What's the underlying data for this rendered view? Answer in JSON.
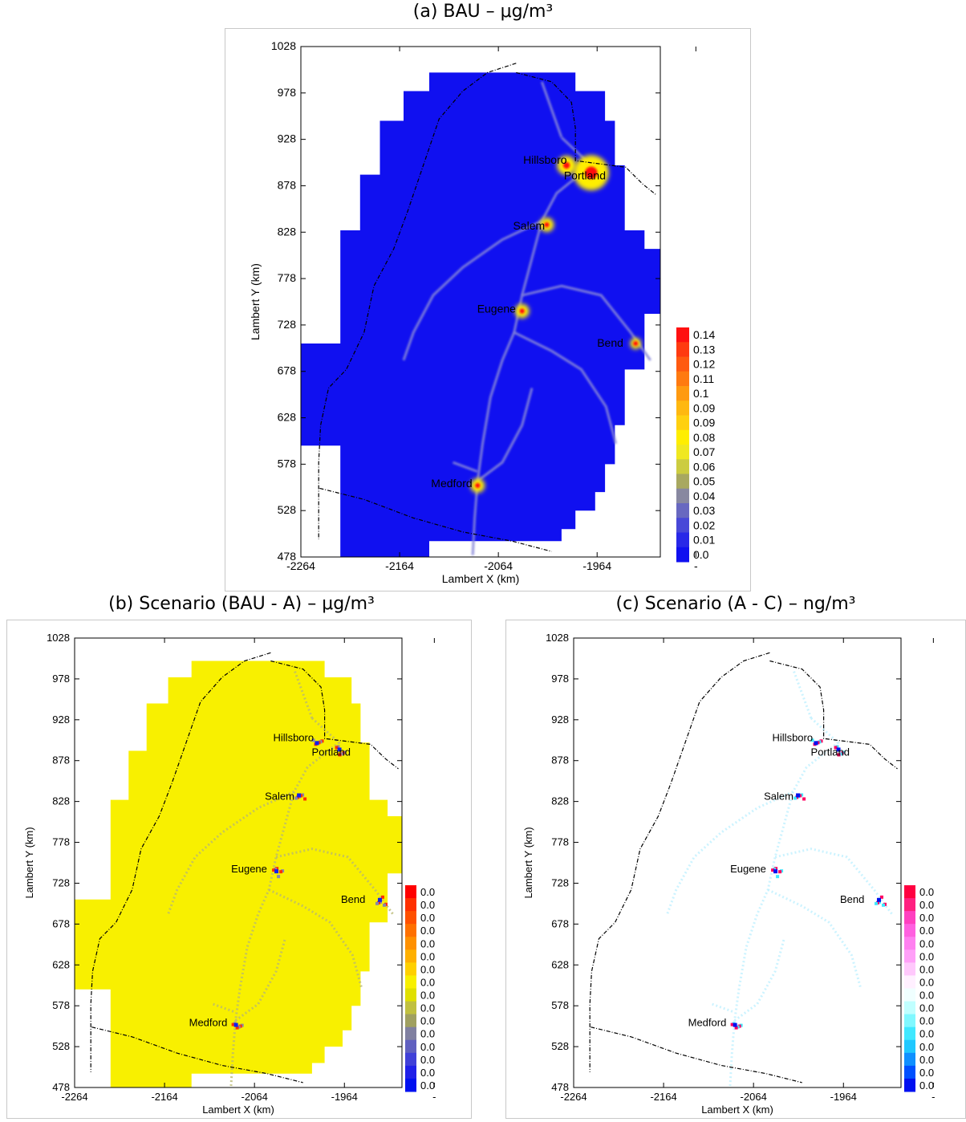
{
  "panels": [
    {
      "title": "(a)  BAU – μg/m³",
      "xlabel": "Lambert X (km)",
      "ylabel": "Lambert Y (km)",
      "xticks": [
        "-2264",
        "-2164",
        "-2064",
        "-1964",
        "-"
      ],
      "yticks": [
        "1028",
        "978",
        "928",
        "878",
        "828",
        "778",
        "728",
        "678",
        "628",
        "578",
        "528",
        "478"
      ],
      "legend": [
        "0.14",
        "0.13",
        "0.12",
        "0.11",
        "0.1",
        "0.09",
        "0.09",
        "0.08",
        "0.07",
        "0.06",
        "0.05",
        "0.04",
        "0.03",
        "0.02",
        "0.01",
        "0.0"
      ],
      "colors": {
        "background": "#1010f0",
        "high": "#ff1010",
        "mid": "#ffee00",
        "road": "#8888d8"
      }
    },
    {
      "title": "(b)  Scenario (BAU - A) – μg/m³",
      "xlabel": "Lambert X (km)",
      "ylabel": "Lambert Y (km)",
      "xticks": [
        "-2264",
        "-2164",
        "-2064",
        "-1964",
        "-"
      ],
      "yticks": [
        "1028",
        "978",
        "928",
        "878",
        "828",
        "778",
        "728",
        "678",
        "628",
        "578",
        "528",
        "478"
      ],
      "legend": [
        "0.0",
        "0.0",
        "0.0",
        "0.0",
        "0.0",
        "0.0",
        "0.0",
        "0.0",
        "0.0",
        "0.0",
        "0.0",
        "0.0",
        "0.0",
        "0.0",
        "0.0",
        "0.0"
      ],
      "colors": {
        "background": "#f8f000",
        "high": "#ff3000",
        "low": "#1020f0"
      }
    },
    {
      "title": "(c) Scenario (A - C) – ng/m³",
      "xlabel": "Lambert X (km)",
      "ylabel": "Lambert Y (km)",
      "xticks": [
        "-2264",
        "-2164",
        "-2064",
        "-1964",
        "-"
      ],
      "yticks": [
        "1028",
        "978",
        "928",
        "878",
        "828",
        "778",
        "728",
        "678",
        "628",
        "578",
        "528",
        "478"
      ],
      "legend": [
        "0.0",
        "0.0",
        "0.0",
        "0.0",
        "0.0",
        "0.0",
        "0.0",
        "0.0",
        "0.0",
        "0.0",
        "0.0",
        "0.0",
        "0.0",
        "0.0",
        "0.0",
        "0.0"
      ],
      "colors": {
        "background": "#ffffff",
        "high": "#ff0060",
        "low": "#0010f0"
      }
    }
  ],
  "chart_data": [
    {
      "type": "heatmap",
      "title": "(a)  BAU – μg/m³",
      "xlabel": "Lambert X (km)",
      "ylabel": "Lambert Y (km)",
      "xlim": [
        -2264,
        -1900
      ],
      "ylim": [
        478,
        1028
      ],
      "colorbar": [
        0.0,
        0.01,
        0.02,
        0.03,
        0.04,
        0.05,
        0.06,
        0.07,
        0.08,
        0.09,
        0.09,
        0.1,
        0.11,
        0.12,
        0.13,
        0.14
      ],
      "cities": [
        {
          "name": "Hillsboro",
          "x": -1995,
          "y": 900
        },
        {
          "name": "Portland",
          "x": -1970,
          "y": 892
        },
        {
          "name": "Salem",
          "x": -2015,
          "y": 836
        },
        {
          "name": "Eugene",
          "x": -2040,
          "y": 743
        },
        {
          "name": "Bend",
          "x": -1925,
          "y": 708
        },
        {
          "name": "Medford",
          "x": -2085,
          "y": 555
        }
      ]
    },
    {
      "type": "heatmap",
      "title": "(b)  Scenario (BAU - A) – μg/m³",
      "xlabel": "Lambert X (km)",
      "ylabel": "Lambert Y (km)",
      "xlim": [
        -2264,
        -1900
      ],
      "ylim": [
        478,
        1028
      ],
      "colorbar": [
        0.0,
        0.0,
        0.0,
        0.0,
        0.0,
        0.0,
        0.0,
        0.0,
        0.0,
        0.0,
        0.0,
        0.0,
        0.0,
        0.0,
        0.0,
        0.0
      ],
      "cities": [
        {
          "name": "Hillsboro",
          "x": -1995,
          "y": 900
        },
        {
          "name": "Portland",
          "x": -1970,
          "y": 892
        },
        {
          "name": "Salem",
          "x": -2015,
          "y": 836
        },
        {
          "name": "Eugene",
          "x": -2040,
          "y": 743
        },
        {
          "name": "Bend",
          "x": -1925,
          "y": 708
        },
        {
          "name": "Medford",
          "x": -2085,
          "y": 555
        }
      ]
    },
    {
      "type": "heatmap",
      "title": "(c) Scenario (A - C) – ng/m³",
      "xlabel": "Lambert X (km)",
      "ylabel": "Lambert Y (km)",
      "xlim": [
        -2264,
        -1900
      ],
      "ylim": [
        478,
        1028
      ],
      "colorbar": [
        0.0,
        0.0,
        0.0,
        0.0,
        0.0,
        0.0,
        0.0,
        0.0,
        0.0,
        0.0,
        0.0,
        0.0,
        0.0,
        0.0,
        0.0,
        0.0
      ],
      "cities": [
        {
          "name": "Hillsboro",
          "x": -1995,
          "y": 900
        },
        {
          "name": "Portland",
          "x": -1970,
          "y": 892
        },
        {
          "name": "Salem",
          "x": -2015,
          "y": 836
        },
        {
          "name": "Eugene",
          "x": -2040,
          "y": 743
        },
        {
          "name": "Bend",
          "x": -1925,
          "y": 708
        },
        {
          "name": "Medford",
          "x": -2085,
          "y": 555
        }
      ]
    }
  ]
}
